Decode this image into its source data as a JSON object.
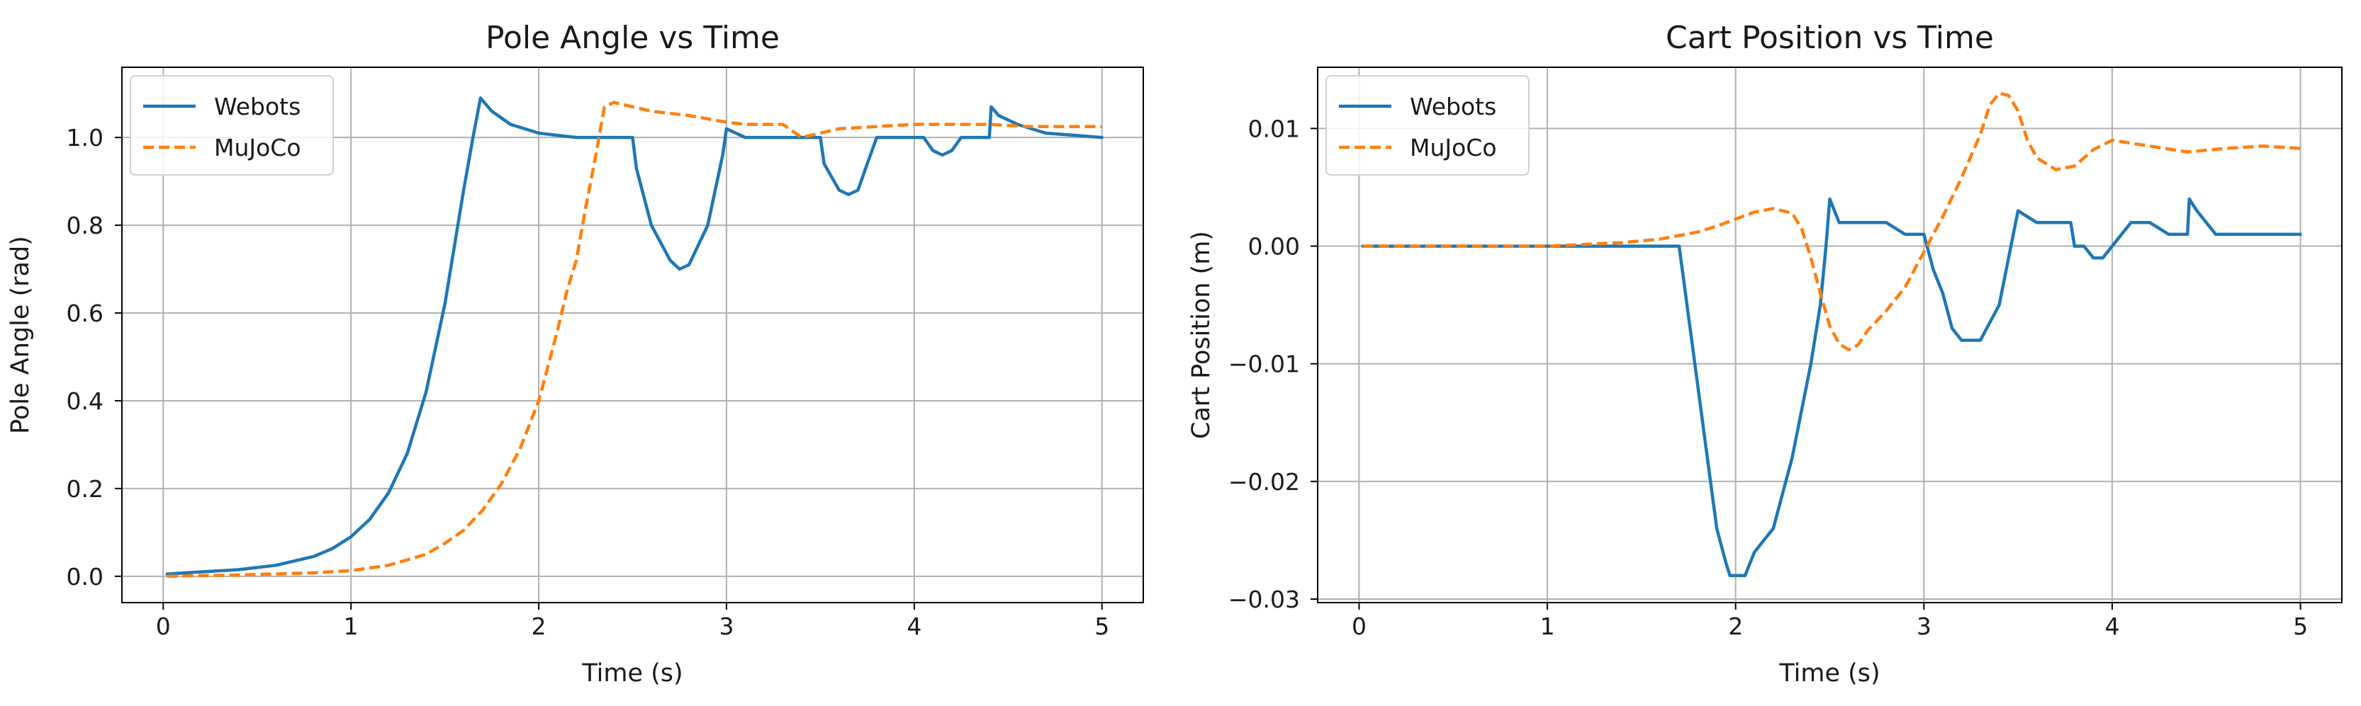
{
  "chart_data": [
    {
      "type": "line",
      "title": "Pole Angle vs Time",
      "xlabel": "Time (s)",
      "ylabel": "Pole Angle (rad)",
      "xlim": [
        -0.22,
        5.22
      ],
      "ylim": [
        -0.06,
        1.16
      ],
      "xticks": [
        0,
        1,
        2,
        3,
        4,
        5
      ],
      "xtick_labels": [
        "0",
        "1",
        "2",
        "3",
        "4",
        "5"
      ],
      "yticks": [
        0.0,
        0.2,
        0.4,
        0.6,
        0.8,
        1.0
      ],
      "ytick_labels": [
        "0.0",
        "0.2",
        "0.4",
        "0.6",
        "0.8",
        "1.0"
      ],
      "grid": true,
      "legend_position": "upper-left",
      "series": [
        {
          "name": "Webots",
          "color": "#1f77b4",
          "style": "solid",
          "x": [
            0.02,
            0.2,
            0.4,
            0.6,
            0.8,
            0.9,
            1.0,
            1.1,
            1.2,
            1.3,
            1.4,
            1.5,
            1.6,
            1.65,
            1.69,
            1.75,
            1.85,
            2.0,
            2.2,
            2.5,
            2.52,
            2.6,
            2.7,
            2.75,
            2.8,
            2.9,
            2.98,
            3.0,
            3.1,
            3.3,
            3.5,
            3.52,
            3.6,
            3.65,
            3.7,
            3.75,
            3.8,
            4.0,
            4.05,
            4.1,
            4.15,
            4.2,
            4.25,
            4.4,
            4.41,
            4.45,
            4.55,
            4.7,
            4.85,
            5.0
          ],
          "y": [
            0.005,
            0.01,
            0.015,
            0.025,
            0.045,
            0.063,
            0.09,
            0.13,
            0.19,
            0.28,
            0.42,
            0.62,
            0.88,
            1.0,
            1.09,
            1.06,
            1.03,
            1.01,
            1.0,
            1.0,
            0.93,
            0.8,
            0.72,
            0.7,
            0.71,
            0.8,
            0.96,
            1.02,
            1.0,
            1.0,
            1.0,
            0.94,
            0.88,
            0.87,
            0.88,
            0.94,
            1.0,
            1.0,
            1.0,
            0.97,
            0.96,
            0.97,
            1.0,
            1.0,
            1.07,
            1.05,
            1.03,
            1.01,
            1.005,
            1.0
          ]
        },
        {
          "name": "MuJoCo",
          "color": "#ff7f0e",
          "style": "dashed",
          "x": [
            0.02,
            0.4,
            0.8,
            1.0,
            1.2,
            1.4,
            1.5,
            1.6,
            1.7,
            1.8,
            1.9,
            2.0,
            2.1,
            2.15,
            2.2,
            2.25,
            2.3,
            2.35,
            2.4,
            2.45,
            2.5,
            2.6,
            2.8,
            3.0,
            3.1,
            3.3,
            3.4,
            3.5,
            3.6,
            3.8,
            4.0,
            4.2,
            4.4,
            4.6,
            5.0
          ],
          "y": [
            0.0,
            0.003,
            0.008,
            0.013,
            0.025,
            0.05,
            0.075,
            0.105,
            0.15,
            0.21,
            0.29,
            0.4,
            0.56,
            0.65,
            0.72,
            0.84,
            0.95,
            1.07,
            1.08,
            1.075,
            1.07,
            1.06,
            1.05,
            1.035,
            1.03,
            1.03,
            1.0,
            1.01,
            1.02,
            1.025,
            1.03,
            1.03,
            1.03,
            1.025,
            1.025
          ]
        }
      ]
    },
    {
      "type": "line",
      "title": "Cart Position vs Time",
      "xlabel": "Time (s)",
      "ylabel": "Cart Position (m)",
      "xlim": [
        -0.22,
        5.22
      ],
      "ylim": [
        -0.0303,
        0.0152
      ],
      "xticks": [
        0,
        1,
        2,
        3,
        4,
        5
      ],
      "xtick_labels": [
        "0",
        "1",
        "2",
        "3",
        "4",
        "5"
      ],
      "yticks": [
        -0.03,
        -0.02,
        -0.01,
        0.0,
        0.01
      ],
      "ytick_labels": [
        "−0.03",
        "−0.02",
        "−0.01",
        "0.00",
        "0.01"
      ],
      "grid": true,
      "legend_position": "upper-left",
      "series": [
        {
          "name": "Webots",
          "color": "#1f77b4",
          "style": "solid",
          "x": [
            0.02,
            1.7,
            1.75,
            1.8,
            1.85,
            1.9,
            1.95,
            1.97,
            2.0,
            2.05,
            2.1,
            2.2,
            2.3,
            2.4,
            2.45,
            2.48,
            2.5,
            2.55,
            2.6,
            2.7,
            2.8,
            2.9,
            3.0,
            3.05,
            3.1,
            3.15,
            3.2,
            3.25,
            3.3,
            3.4,
            3.45,
            3.5,
            3.6,
            3.7,
            3.75,
            3.78,
            3.8,
            3.85,
            3.9,
            3.95,
            4.05,
            4.1,
            4.2,
            4.3,
            4.35,
            4.4,
            4.41,
            4.45,
            4.5,
            4.55,
            5.0
          ],
          "y": [
            0.0,
            0.0,
            -0.006,
            -0.012,
            -0.018,
            -0.024,
            -0.027,
            -0.028,
            -0.028,
            -0.028,
            -0.026,
            -0.024,
            -0.018,
            -0.01,
            -0.005,
            0.0,
            0.004,
            0.002,
            0.002,
            0.002,
            0.002,
            0.001,
            0.001,
            -0.002,
            -0.004,
            -0.007,
            -0.008,
            -0.008,
            -0.008,
            -0.005,
            -0.001,
            0.003,
            0.002,
            0.002,
            0.002,
            0.002,
            0.0,
            0.0,
            -0.001,
            -0.001,
            0.001,
            0.002,
            0.002,
            0.001,
            0.001,
            0.001,
            0.004,
            0.003,
            0.002,
            0.001,
            0.001
          ]
        },
        {
          "name": "MuJoCo",
          "color": "#ff7f0e",
          "style": "dashed",
          "x": [
            0.02,
            1.0,
            1.4,
            1.6,
            1.8,
            1.9,
            2.0,
            2.1,
            2.2,
            2.3,
            2.35,
            2.4,
            2.45,
            2.5,
            2.55,
            2.6,
            2.65,
            2.7,
            2.8,
            2.9,
            3.0,
            3.1,
            3.2,
            3.3,
            3.35,
            3.4,
            3.45,
            3.5,
            3.55,
            3.6,
            3.7,
            3.8,
            3.9,
            4.0,
            4.2,
            4.4,
            4.6,
            4.8,
            5.0
          ],
          "y": [
            0.0,
            0.0,
            0.0003,
            0.0006,
            0.0012,
            0.0017,
            0.0023,
            0.0029,
            0.0032,
            0.0028,
            0.0015,
            -0.001,
            -0.004,
            -0.0068,
            -0.0083,
            -0.0088,
            -0.0084,
            -0.0072,
            -0.0055,
            -0.0035,
            -0.0005,
            0.0025,
            0.0058,
            0.0095,
            0.012,
            0.013,
            0.0128,
            0.0115,
            0.009,
            0.0075,
            0.0065,
            0.0068,
            0.0082,
            0.009,
            0.0085,
            0.008,
            0.0083,
            0.0085,
            0.0083
          ]
        }
      ]
    }
  ]
}
